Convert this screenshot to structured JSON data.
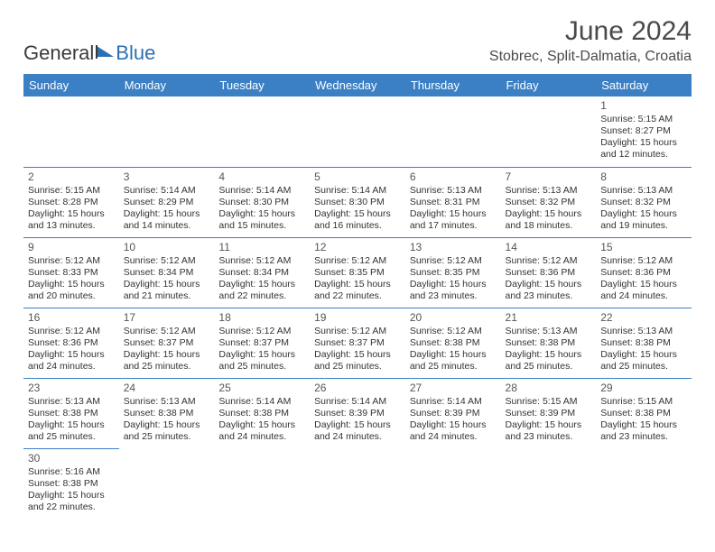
{
  "logo": {
    "text_a": "General",
    "text_b": "Blue",
    "triangle_color": "#2d6fb5"
  },
  "title": "June 2024",
  "location": "Stobrec, Split-Dalmatia, Croatia",
  "colors": {
    "header_bg": "#3b7fc4",
    "header_text": "#ffffff",
    "cell_border": "#3b7fc4",
    "body_text": "#333333",
    "title_text": "#4a4a4a"
  },
  "typography": {
    "title_fontsize": 30,
    "location_fontsize": 16,
    "dayheader_fontsize": 13,
    "cell_fontsize": 10.5,
    "daynum_fontsize": 12
  },
  "day_headers": [
    "Sunday",
    "Monday",
    "Tuesday",
    "Wednesday",
    "Thursday",
    "Friday",
    "Saturday"
  ],
  "weeks": [
    [
      null,
      null,
      null,
      null,
      null,
      null,
      {
        "n": "1",
        "sunrise": "Sunrise: 5:15 AM",
        "sunset": "Sunset: 8:27 PM",
        "daylight": "Daylight: 15 hours and 12 minutes."
      }
    ],
    [
      {
        "n": "2",
        "sunrise": "Sunrise: 5:15 AM",
        "sunset": "Sunset: 8:28 PM",
        "daylight": "Daylight: 15 hours and 13 minutes."
      },
      {
        "n": "3",
        "sunrise": "Sunrise: 5:14 AM",
        "sunset": "Sunset: 8:29 PM",
        "daylight": "Daylight: 15 hours and 14 minutes."
      },
      {
        "n": "4",
        "sunrise": "Sunrise: 5:14 AM",
        "sunset": "Sunset: 8:30 PM",
        "daylight": "Daylight: 15 hours and 15 minutes."
      },
      {
        "n": "5",
        "sunrise": "Sunrise: 5:14 AM",
        "sunset": "Sunset: 8:30 PM",
        "daylight": "Daylight: 15 hours and 16 minutes."
      },
      {
        "n": "6",
        "sunrise": "Sunrise: 5:13 AM",
        "sunset": "Sunset: 8:31 PM",
        "daylight": "Daylight: 15 hours and 17 minutes."
      },
      {
        "n": "7",
        "sunrise": "Sunrise: 5:13 AM",
        "sunset": "Sunset: 8:32 PM",
        "daylight": "Daylight: 15 hours and 18 minutes."
      },
      {
        "n": "8",
        "sunrise": "Sunrise: 5:13 AM",
        "sunset": "Sunset: 8:32 PM",
        "daylight": "Daylight: 15 hours and 19 minutes."
      }
    ],
    [
      {
        "n": "9",
        "sunrise": "Sunrise: 5:12 AM",
        "sunset": "Sunset: 8:33 PM",
        "daylight": "Daylight: 15 hours and 20 minutes."
      },
      {
        "n": "10",
        "sunrise": "Sunrise: 5:12 AM",
        "sunset": "Sunset: 8:34 PM",
        "daylight": "Daylight: 15 hours and 21 minutes."
      },
      {
        "n": "11",
        "sunrise": "Sunrise: 5:12 AM",
        "sunset": "Sunset: 8:34 PM",
        "daylight": "Daylight: 15 hours and 22 minutes."
      },
      {
        "n": "12",
        "sunrise": "Sunrise: 5:12 AM",
        "sunset": "Sunset: 8:35 PM",
        "daylight": "Daylight: 15 hours and 22 minutes."
      },
      {
        "n": "13",
        "sunrise": "Sunrise: 5:12 AM",
        "sunset": "Sunset: 8:35 PM",
        "daylight": "Daylight: 15 hours and 23 minutes."
      },
      {
        "n": "14",
        "sunrise": "Sunrise: 5:12 AM",
        "sunset": "Sunset: 8:36 PM",
        "daylight": "Daylight: 15 hours and 23 minutes."
      },
      {
        "n": "15",
        "sunrise": "Sunrise: 5:12 AM",
        "sunset": "Sunset: 8:36 PM",
        "daylight": "Daylight: 15 hours and 24 minutes."
      }
    ],
    [
      {
        "n": "16",
        "sunrise": "Sunrise: 5:12 AM",
        "sunset": "Sunset: 8:36 PM",
        "daylight": "Daylight: 15 hours and 24 minutes."
      },
      {
        "n": "17",
        "sunrise": "Sunrise: 5:12 AM",
        "sunset": "Sunset: 8:37 PM",
        "daylight": "Daylight: 15 hours and 25 minutes."
      },
      {
        "n": "18",
        "sunrise": "Sunrise: 5:12 AM",
        "sunset": "Sunset: 8:37 PM",
        "daylight": "Daylight: 15 hours and 25 minutes."
      },
      {
        "n": "19",
        "sunrise": "Sunrise: 5:12 AM",
        "sunset": "Sunset: 8:37 PM",
        "daylight": "Daylight: 15 hours and 25 minutes."
      },
      {
        "n": "20",
        "sunrise": "Sunrise: 5:12 AM",
        "sunset": "Sunset: 8:38 PM",
        "daylight": "Daylight: 15 hours and 25 minutes."
      },
      {
        "n": "21",
        "sunrise": "Sunrise: 5:13 AM",
        "sunset": "Sunset: 8:38 PM",
        "daylight": "Daylight: 15 hours and 25 minutes."
      },
      {
        "n": "22",
        "sunrise": "Sunrise: 5:13 AM",
        "sunset": "Sunset: 8:38 PM",
        "daylight": "Daylight: 15 hours and 25 minutes."
      }
    ],
    [
      {
        "n": "23",
        "sunrise": "Sunrise: 5:13 AM",
        "sunset": "Sunset: 8:38 PM",
        "daylight": "Daylight: 15 hours and 25 minutes."
      },
      {
        "n": "24",
        "sunrise": "Sunrise: 5:13 AM",
        "sunset": "Sunset: 8:38 PM",
        "daylight": "Daylight: 15 hours and 25 minutes."
      },
      {
        "n": "25",
        "sunrise": "Sunrise: 5:14 AM",
        "sunset": "Sunset: 8:38 PM",
        "daylight": "Daylight: 15 hours and 24 minutes."
      },
      {
        "n": "26",
        "sunrise": "Sunrise: 5:14 AM",
        "sunset": "Sunset: 8:39 PM",
        "daylight": "Daylight: 15 hours and 24 minutes."
      },
      {
        "n": "27",
        "sunrise": "Sunrise: 5:14 AM",
        "sunset": "Sunset: 8:39 PM",
        "daylight": "Daylight: 15 hours and 24 minutes."
      },
      {
        "n": "28",
        "sunrise": "Sunrise: 5:15 AM",
        "sunset": "Sunset: 8:39 PM",
        "daylight": "Daylight: 15 hours and 23 minutes."
      },
      {
        "n": "29",
        "sunrise": "Sunrise: 5:15 AM",
        "sunset": "Sunset: 8:38 PM",
        "daylight": "Daylight: 15 hours and 23 minutes."
      }
    ],
    [
      {
        "n": "30",
        "sunrise": "Sunrise: 5:16 AM",
        "sunset": "Sunset: 8:38 PM",
        "daylight": "Daylight: 15 hours and 22 minutes."
      },
      null,
      null,
      null,
      null,
      null,
      null
    ]
  ]
}
